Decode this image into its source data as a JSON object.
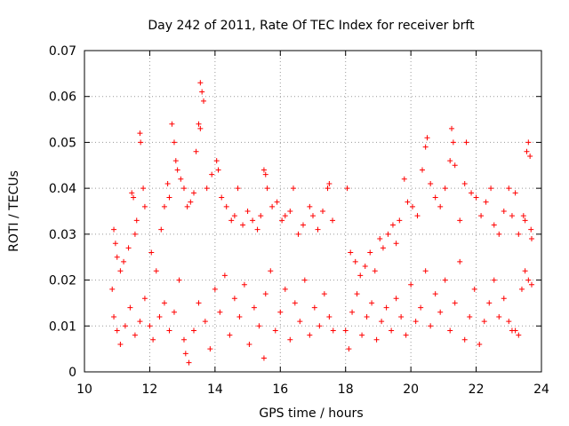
{
  "chart_data": {
    "type": "scatter",
    "title": "Day 242 of 2011, Rate Of TEC Index for receiver brft",
    "xlabel": "GPS time / hours",
    "ylabel": "ROTI / TECUs",
    "xlim": [
      10,
      24
    ],
    "ylim": [
      0,
      0.07
    ],
    "xticks": [
      "10",
      "12",
      "14",
      "16",
      "18",
      "20",
      "22",
      "24"
    ],
    "yticks": [
      "0",
      "0.01",
      "0.02",
      "0.03",
      "0.04",
      "0.05",
      "0.06",
      "0.07"
    ],
    "grid": true,
    "marker": "+",
    "color": "#ff0000",
    "series": [
      {
        "points": [
          [
            10.9,
            0.031
          ],
          [
            10.95,
            0.028
          ],
          [
            11.0,
            0.025
          ],
          [
            11.1,
            0.022
          ],
          [
            11.2,
            0.024
          ],
          [
            11.35,
            0.027
          ],
          [
            11.45,
            0.039
          ],
          [
            11.5,
            0.038
          ],
          [
            11.55,
            0.03
          ],
          [
            11.6,
            0.033
          ],
          [
            11.7,
            0.052
          ],
          [
            11.72,
            0.05
          ],
          [
            11.8,
            0.04
          ],
          [
            11.85,
            0.036
          ],
          [
            12.05,
            0.026
          ],
          [
            12.2,
            0.022
          ],
          [
            12.35,
            0.031
          ],
          [
            12.45,
            0.036
          ],
          [
            12.55,
            0.041
          ],
          [
            12.6,
            0.038
          ],
          [
            12.68,
            0.054
          ],
          [
            12.75,
            0.05
          ],
          [
            12.8,
            0.046
          ],
          [
            12.85,
            0.044
          ],
          [
            12.95,
            0.042
          ],
          [
            13.05,
            0.04
          ],
          [
            13.15,
            0.036
          ],
          [
            13.25,
            0.037
          ],
          [
            13.35,
            0.039
          ],
          [
            13.42,
            0.048
          ],
          [
            13.5,
            0.054
          ],
          [
            13.55,
            0.063
          ],
          [
            13.6,
            0.061
          ],
          [
            13.65,
            0.059
          ],
          [
            13.55,
            0.053
          ],
          [
            13.75,
            0.04
          ],
          [
            13.9,
            0.043
          ],
          [
            14.05,
            0.046
          ],
          [
            14.1,
            0.044
          ],
          [
            14.2,
            0.038
          ],
          [
            14.35,
            0.036
          ],
          [
            14.5,
            0.033
          ],
          [
            14.6,
            0.034
          ],
          [
            14.7,
            0.04
          ],
          [
            14.85,
            0.032
          ],
          [
            15.0,
            0.035
          ],
          [
            15.15,
            0.033
          ],
          [
            15.3,
            0.031
          ],
          [
            15.4,
            0.034
          ],
          [
            15.5,
            0.044
          ],
          [
            15.55,
            0.043
          ],
          [
            15.6,
            0.04
          ],
          [
            15.75,
            0.036
          ],
          [
            15.9,
            0.037
          ],
          [
            16.05,
            0.033
          ],
          [
            16.15,
            0.034
          ],
          [
            16.3,
            0.035
          ],
          [
            16.4,
            0.04
          ],
          [
            16.55,
            0.03
          ],
          [
            16.7,
            0.032
          ],
          [
            16.9,
            0.036
          ],
          [
            17.0,
            0.034
          ],
          [
            17.15,
            0.031
          ],
          [
            17.3,
            0.035
          ],
          [
            17.45,
            0.04
          ],
          [
            17.5,
            0.041
          ],
          [
            17.6,
            0.033
          ],
          [
            18.05,
            0.04
          ],
          [
            18.15,
            0.026
          ],
          [
            18.3,
            0.024
          ],
          [
            18.45,
            0.021
          ],
          [
            18.6,
            0.023
          ],
          [
            18.75,
            0.026
          ],
          [
            18.9,
            0.022
          ],
          [
            19.05,
            0.029
          ],
          [
            19.15,
            0.027
          ],
          [
            19.3,
            0.03
          ],
          [
            19.45,
            0.032
          ],
          [
            19.55,
            0.028
          ],
          [
            19.65,
            0.033
          ],
          [
            19.8,
            0.042
          ],
          [
            19.9,
            0.037
          ],
          [
            20.05,
            0.036
          ],
          [
            20.2,
            0.034
          ],
          [
            20.35,
            0.044
          ],
          [
            20.45,
            0.049
          ],
          [
            20.5,
            0.051
          ],
          [
            20.6,
            0.041
          ],
          [
            20.75,
            0.038
          ],
          [
            20.9,
            0.036
          ],
          [
            21.05,
            0.04
          ],
          [
            21.2,
            0.046
          ],
          [
            21.25,
            0.053
          ],
          [
            21.3,
            0.05
          ],
          [
            21.35,
            0.045
          ],
          [
            21.5,
            0.033
          ],
          [
            21.65,
            0.041
          ],
          [
            21.7,
            0.05
          ],
          [
            21.85,
            0.039
          ],
          [
            22.0,
            0.038
          ],
          [
            22.15,
            0.034
          ],
          [
            22.3,
            0.037
          ],
          [
            22.45,
            0.04
          ],
          [
            22.55,
            0.032
          ],
          [
            22.7,
            0.03
          ],
          [
            22.85,
            0.035
          ],
          [
            23.0,
            0.04
          ],
          [
            23.1,
            0.034
          ],
          [
            23.2,
            0.039
          ],
          [
            23.3,
            0.03
          ],
          [
            23.45,
            0.034
          ],
          [
            23.5,
            0.033
          ],
          [
            23.55,
            0.048
          ],
          [
            23.6,
            0.05
          ],
          [
            23.65,
            0.047
          ],
          [
            23.7,
            0.029
          ],
          [
            23.68,
            0.031
          ],
          [
            10.85,
            0.018
          ],
          [
            10.9,
            0.012
          ],
          [
            11.0,
            0.009
          ],
          [
            11.1,
            0.006
          ],
          [
            11.25,
            0.01
          ],
          [
            11.4,
            0.014
          ],
          [
            11.55,
            0.008
          ],
          [
            11.7,
            0.011
          ],
          [
            11.85,
            0.016
          ],
          [
            12.0,
            0.01
          ],
          [
            12.1,
            0.007
          ],
          [
            12.3,
            0.012
          ],
          [
            12.45,
            0.015
          ],
          [
            12.6,
            0.009
          ],
          [
            12.75,
            0.013
          ],
          [
            12.9,
            0.02
          ],
          [
            13.05,
            0.007
          ],
          [
            13.1,
            0.004
          ],
          [
            13.2,
            0.002
          ],
          [
            13.35,
            0.009
          ],
          [
            13.5,
            0.015
          ],
          [
            13.7,
            0.011
          ],
          [
            13.85,
            0.005
          ],
          [
            14.0,
            0.018
          ],
          [
            14.15,
            0.013
          ],
          [
            14.3,
            0.021
          ],
          [
            14.45,
            0.008
          ],
          [
            14.6,
            0.016
          ],
          [
            14.75,
            0.012
          ],
          [
            14.9,
            0.019
          ],
          [
            15.05,
            0.006
          ],
          [
            15.2,
            0.014
          ],
          [
            15.35,
            0.01
          ],
          [
            15.5,
            0.003
          ],
          [
            15.55,
            0.017
          ],
          [
            15.7,
            0.022
          ],
          [
            15.85,
            0.009
          ],
          [
            16.0,
            0.013
          ],
          [
            16.15,
            0.018
          ],
          [
            16.3,
            0.007
          ],
          [
            16.45,
            0.015
          ],
          [
            16.6,
            0.011
          ],
          [
            16.75,
            0.02
          ],
          [
            16.9,
            0.008
          ],
          [
            17.05,
            0.014
          ],
          [
            17.2,
            0.01
          ],
          [
            17.35,
            0.017
          ],
          [
            17.5,
            0.012
          ],
          [
            17.62,
            0.009
          ],
          [
            18.0,
            0.009
          ],
          [
            18.1,
            0.005
          ],
          [
            18.2,
            0.013
          ],
          [
            18.35,
            0.017
          ],
          [
            18.5,
            0.008
          ],
          [
            18.65,
            0.012
          ],
          [
            18.8,
            0.015
          ],
          [
            18.95,
            0.007
          ],
          [
            19.1,
            0.011
          ],
          [
            19.25,
            0.014
          ],
          [
            19.4,
            0.009
          ],
          [
            19.55,
            0.016
          ],
          [
            19.7,
            0.012
          ],
          [
            19.85,
            0.008
          ],
          [
            20.0,
            0.019
          ],
          [
            20.15,
            0.011
          ],
          [
            20.3,
            0.014
          ],
          [
            20.45,
            0.022
          ],
          [
            20.6,
            0.01
          ],
          [
            20.75,
            0.017
          ],
          [
            20.9,
            0.013
          ],
          [
            21.05,
            0.02
          ],
          [
            21.2,
            0.009
          ],
          [
            21.35,
            0.015
          ],
          [
            21.5,
            0.024
          ],
          [
            21.65,
            0.007
          ],
          [
            21.8,
            0.012
          ],
          [
            21.95,
            0.018
          ],
          [
            22.1,
            0.006
          ],
          [
            22.25,
            0.011
          ],
          [
            22.4,
            0.015
          ],
          [
            22.55,
            0.02
          ],
          [
            22.7,
            0.012
          ],
          [
            22.85,
            0.016
          ],
          [
            23.0,
            0.011
          ],
          [
            23.1,
            0.009
          ],
          [
            23.2,
            0.009
          ],
          [
            23.3,
            0.008
          ],
          [
            23.4,
            0.018
          ],
          [
            23.5,
            0.022
          ],
          [
            23.6,
            0.02
          ],
          [
            23.7,
            0.019
          ]
        ]
      }
    ]
  }
}
